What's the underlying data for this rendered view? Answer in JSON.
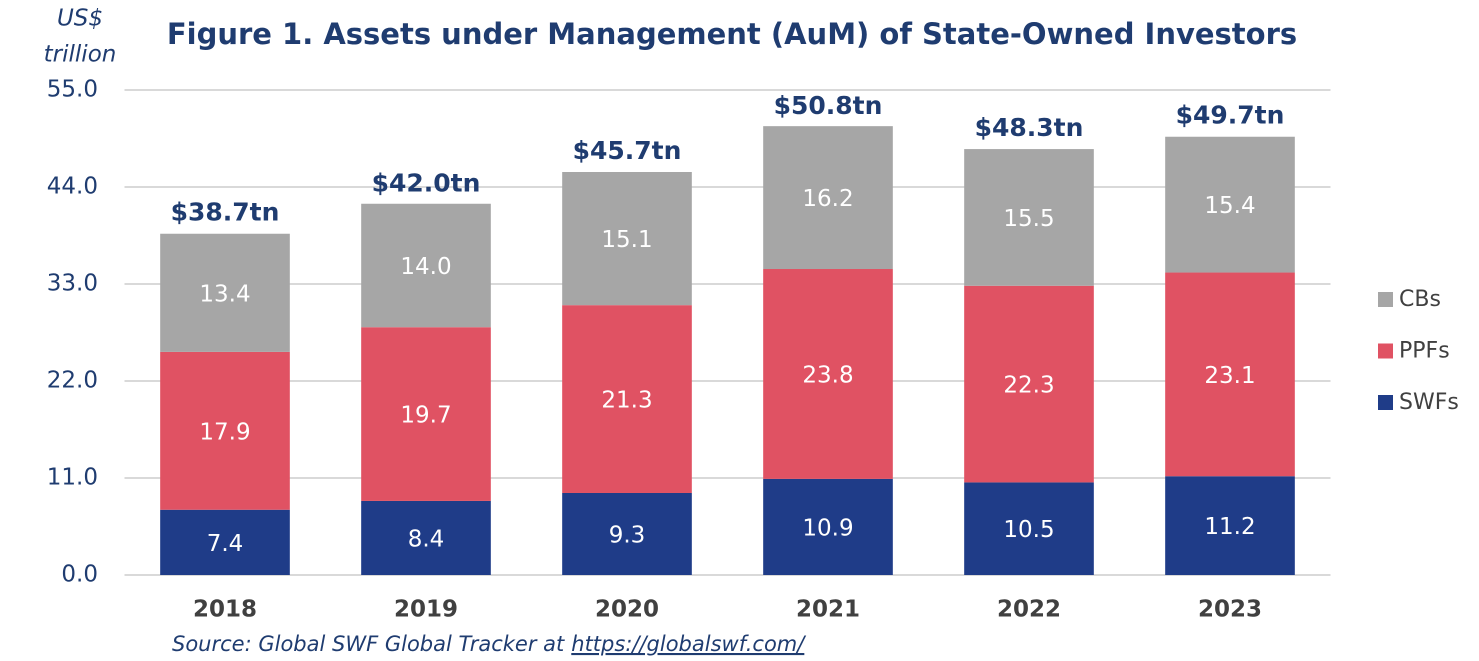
{
  "chart_data": {
    "type": "stacked_bar",
    "title": "Figure 1. Assets under Management (AuM) of State-Owned Investors",
    "ylabel": [
      "US$",
      "trillion"
    ],
    "categories": [
      "2018",
      "2019",
      "2020",
      "2021",
      "2022",
      "2023"
    ],
    "series": [
      {
        "name": "SWFs",
        "color": "#1f3c88",
        "values": [
          7.4,
          8.4,
          9.3,
          10.9,
          10.5,
          11.2
        ],
        "value_labels": [
          "7.4",
          "8.4",
          "9.3",
          "10.9",
          "10.5",
          "11.2"
        ]
      },
      {
        "name": "PPFs",
        "color": "#e05263",
        "values": [
          17.9,
          19.7,
          21.3,
          23.8,
          22.3,
          23.1
        ],
        "value_labels": [
          "17.9",
          "19.7",
          "21.3",
          "23.8",
          "22.3",
          "23.1"
        ]
      },
      {
        "name": "CBs",
        "color": "#a6a6a6",
        "values": [
          13.4,
          14.0,
          15.1,
          16.2,
          15.5,
          15.4
        ],
        "value_labels": [
          "13.4",
          "14.0",
          "15.1",
          "16.2",
          "15.5",
          "15.4"
        ]
      }
    ],
    "totals": {
      "values": [
        38.7,
        42.0,
        45.7,
        50.8,
        48.3,
        49.7
      ],
      "value_labels": [
        "$38.7tn",
        "$42.0tn",
        "$45.7tn",
        "$50.8tn",
        "$48.3tn",
        "$49.7tn"
      ]
    },
    "ylim": [
      0,
      55
    ],
    "yticks": [
      {
        "value": 0,
        "label": "0.0"
      },
      {
        "value": 11,
        "label": "11.0"
      },
      {
        "value": 22,
        "label": "22.0"
      },
      {
        "value": 33,
        "label": "33.0"
      },
      {
        "value": 44,
        "label": "44.0"
      },
      {
        "value": 55,
        "label": "55.0"
      }
    ],
    "grid": true,
    "legend": "right",
    "source": {
      "text": "Source: Global SWF Global Tracker at",
      "link": "https://globalswf.com/"
    }
  }
}
